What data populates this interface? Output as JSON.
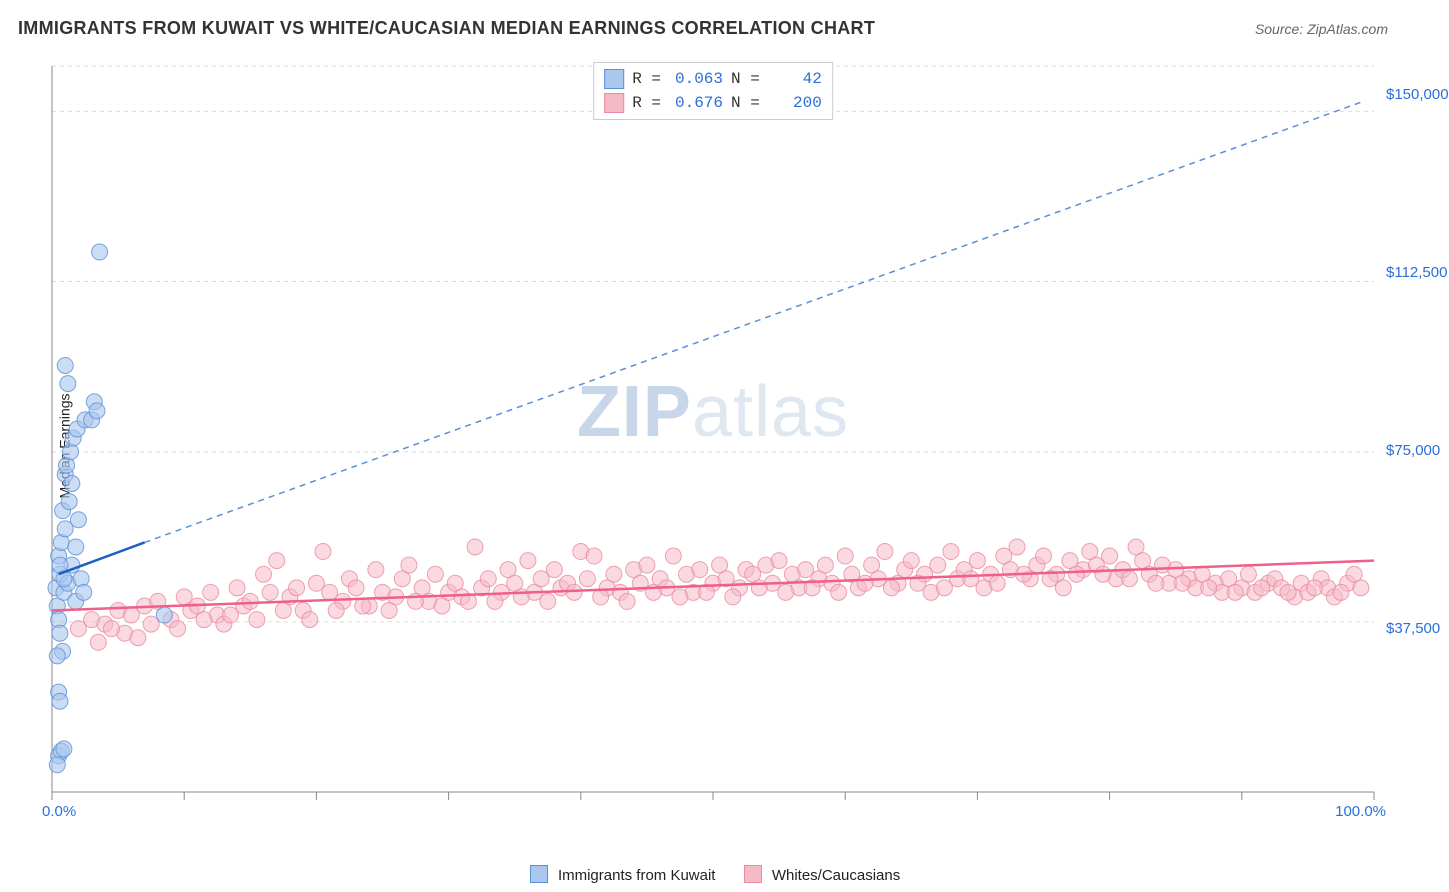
{
  "title": "IMMIGRANTS FROM KUWAIT VS WHITE/CAUCASIAN MEDIAN EARNINGS CORRELATION CHART",
  "source": "Source: ZipAtlas.com",
  "y_axis_label": "Median Earnings",
  "watermark_zip": "ZIP",
  "watermark_atlas": "atlas",
  "chart": {
    "type": "scatter",
    "plot_background": "#ffffff",
    "grid_color": "#dddddd",
    "grid_style": "dashed",
    "axis_line_color": "#888888",
    "x_axis": {
      "min": 0.0,
      "max": 100.0,
      "tick_step": 10.0,
      "labeled_ticks": [
        0.0,
        100.0
      ],
      "tick_format_left": "0.0%",
      "tick_format_right": "100.0%"
    },
    "y_axis": {
      "min": 0,
      "max": 160000,
      "gridlines": [
        37500,
        75000,
        112500,
        150000
      ],
      "tick_format": "currency",
      "label_37500": "$37,500",
      "label_75000": "$75,000",
      "label_112500": "$112,500",
      "label_150000": "$150,000"
    },
    "series": [
      {
        "name": "Immigrants from Kuwait",
        "marker_color": "#a9c7ef",
        "marker_border": "#5b8fd6",
        "marker_opacity": 0.6,
        "marker_radius": 8,
        "trend_solid_color": "#1f5fbf",
        "trend_solid_width": 2.5,
        "trend_dashed_color": "#5b8fd6",
        "trend_dash": "6 5",
        "trend_solid": {
          "x1": 0.5,
          "y1": 48000,
          "x2": 7.0,
          "y2": 55000
        },
        "trend_dashed": {
          "x1": 7.0,
          "y1": 55000,
          "x2": 99.0,
          "y2": 152000
        },
        "R": 0.063,
        "N": 42,
        "points": [
          {
            "x": 0.3,
            "y": 45000
          },
          {
            "x": 0.5,
            "y": 52000
          },
          {
            "x": 0.4,
            "y": 41000
          },
          {
            "x": 0.6,
            "y": 48000
          },
          {
            "x": 0.8,
            "y": 62000
          },
          {
            "x": 1.0,
            "y": 70000
          },
          {
            "x": 0.7,
            "y": 55000
          },
          {
            "x": 0.5,
            "y": 38000
          },
          {
            "x": 0.9,
            "y": 44000
          },
          {
            "x": 0.6,
            "y": 35000
          },
          {
            "x": 0.8,
            "y": 31000
          },
          {
            "x": 0.4,
            "y": 30000
          },
          {
            "x": 0.5,
            "y": 22000
          },
          {
            "x": 0.6,
            "y": 20000
          },
          {
            "x": 0.5,
            "y": 8000
          },
          {
            "x": 0.7,
            "y": 9000
          },
          {
            "x": 0.4,
            "y": 6000
          },
          {
            "x": 0.9,
            "y": 9500
          },
          {
            "x": 1.5,
            "y": 50000
          },
          {
            "x": 1.2,
            "y": 46000
          },
          {
            "x": 1.8,
            "y": 54000
          },
          {
            "x": 2.0,
            "y": 60000
          },
          {
            "x": 2.2,
            "y": 47000
          },
          {
            "x": 1.0,
            "y": 58000
          },
          {
            "x": 1.3,
            "y": 64000
          },
          {
            "x": 1.5,
            "y": 68000
          },
          {
            "x": 1.1,
            "y": 72000
          },
          {
            "x": 1.4,
            "y": 75000
          },
          {
            "x": 1.6,
            "y": 78000
          },
          {
            "x": 1.9,
            "y": 80000
          },
          {
            "x": 2.5,
            "y": 82000
          },
          {
            "x": 3.0,
            "y": 82000
          },
          {
            "x": 3.2,
            "y": 86000
          },
          {
            "x": 3.4,
            "y": 84000
          },
          {
            "x": 1.2,
            "y": 90000
          },
          {
            "x": 1.0,
            "y": 94000
          },
          {
            "x": 3.6,
            "y": 119000
          },
          {
            "x": 8.5,
            "y": 39000
          },
          {
            "x": 1.8,
            "y": 42000
          },
          {
            "x": 2.4,
            "y": 44000
          },
          {
            "x": 0.6,
            "y": 50000
          },
          {
            "x": 0.9,
            "y": 47000
          }
        ]
      },
      {
        "name": "Whites/Caucasians",
        "marker_color": "#f6b9c6",
        "marker_border": "#ea8ba1",
        "marker_opacity": 0.55,
        "marker_radius": 8,
        "trend_solid_color": "#ef5f8a",
        "trend_solid_width": 2.5,
        "trend_solid": {
          "x1": 0.0,
          "y1": 40000,
          "x2": 100.0,
          "y2": 51000
        },
        "R": 0.676,
        "N": 200,
        "points": [
          {
            "x": 2,
            "y": 36000
          },
          {
            "x": 3,
            "y": 38000
          },
          {
            "x": 4,
            "y": 37000
          },
          {
            "x": 5,
            "y": 40000
          },
          {
            "x": 5.5,
            "y": 35000
          },
          {
            "x": 6,
            "y": 39000
          },
          {
            "x": 7,
            "y": 41000
          },
          {
            "x": 7.5,
            "y": 37000
          },
          {
            "x": 8,
            "y": 42000
          },
          {
            "x": 9,
            "y": 38000
          },
          {
            "x": 10,
            "y": 43000
          },
          {
            "x": 10.5,
            "y": 40000
          },
          {
            "x": 11,
            "y": 41000
          },
          {
            "x": 12,
            "y": 44000
          },
          {
            "x": 12.5,
            "y": 39000
          },
          {
            "x": 13,
            "y": 37000
          },
          {
            "x": 14,
            "y": 45000
          },
          {
            "x": 14.5,
            "y": 41000
          },
          {
            "x": 15,
            "y": 42000
          },
          {
            "x": 16,
            "y": 48000
          },
          {
            "x": 16.5,
            "y": 44000
          },
          {
            "x": 17,
            "y": 51000
          },
          {
            "x": 18,
            "y": 43000
          },
          {
            "x": 18.5,
            "y": 45000
          },
          {
            "x": 19,
            "y": 40000
          },
          {
            "x": 20,
            "y": 46000
          },
          {
            "x": 20.5,
            "y": 53000
          },
          {
            "x": 21,
            "y": 44000
          },
          {
            "x": 22,
            "y": 42000
          },
          {
            "x": 22.5,
            "y": 47000
          },
          {
            "x": 23,
            "y": 45000
          },
          {
            "x": 24,
            "y": 41000
          },
          {
            "x": 24.5,
            "y": 49000
          },
          {
            "x": 25,
            "y": 44000
          },
          {
            "x": 26,
            "y": 43000
          },
          {
            "x": 26.5,
            "y": 47000
          },
          {
            "x": 27,
            "y": 50000
          },
          {
            "x": 28,
            "y": 45000
          },
          {
            "x": 28.5,
            "y": 42000
          },
          {
            "x": 29,
            "y": 48000
          },
          {
            "x": 30,
            "y": 44000
          },
          {
            "x": 30.5,
            "y": 46000
          },
          {
            "x": 31,
            "y": 43000
          },
          {
            "x": 32,
            "y": 54000
          },
          {
            "x": 32.5,
            "y": 45000
          },
          {
            "x": 33,
            "y": 47000
          },
          {
            "x": 34,
            "y": 44000
          },
          {
            "x": 34.5,
            "y": 49000
          },
          {
            "x": 35,
            "y": 46000
          },
          {
            "x": 36,
            "y": 51000
          },
          {
            "x": 36.5,
            "y": 44000
          },
          {
            "x": 37,
            "y": 47000
          },
          {
            "x": 38,
            "y": 49000
          },
          {
            "x": 38.5,
            "y": 45000
          },
          {
            "x": 39,
            "y": 46000
          },
          {
            "x": 40,
            "y": 53000
          },
          {
            "x": 40.5,
            "y": 47000
          },
          {
            "x": 41,
            "y": 52000
          },
          {
            "x": 42,
            "y": 45000
          },
          {
            "x": 42.5,
            "y": 48000
          },
          {
            "x": 43,
            "y": 44000
          },
          {
            "x": 44,
            "y": 49000
          },
          {
            "x": 44.5,
            "y": 46000
          },
          {
            "x": 45,
            "y": 50000
          },
          {
            "x": 46,
            "y": 47000
          },
          {
            "x": 46.5,
            "y": 45000
          },
          {
            "x": 47,
            "y": 52000
          },
          {
            "x": 48,
            "y": 48000
          },
          {
            "x": 48.5,
            "y": 44000
          },
          {
            "x": 49,
            "y": 49000
          },
          {
            "x": 50,
            "y": 46000
          },
          {
            "x": 50.5,
            "y": 50000
          },
          {
            "x": 51,
            "y": 47000
          },
          {
            "x": 52,
            "y": 45000
          },
          {
            "x": 52.5,
            "y": 49000
          },
          {
            "x": 53,
            "y": 48000
          },
          {
            "x": 54,
            "y": 50000
          },
          {
            "x": 54.5,
            "y": 46000
          },
          {
            "x": 55,
            "y": 51000
          },
          {
            "x": 56,
            "y": 48000
          },
          {
            "x": 56.5,
            "y": 45000
          },
          {
            "x": 57,
            "y": 49000
          },
          {
            "x": 58,
            "y": 47000
          },
          {
            "x": 58.5,
            "y": 50000
          },
          {
            "x": 59,
            "y": 46000
          },
          {
            "x": 60,
            "y": 52000
          },
          {
            "x": 60.5,
            "y": 48000
          },
          {
            "x": 61,
            "y": 45000
          },
          {
            "x": 62,
            "y": 50000
          },
          {
            "x": 62.5,
            "y": 47000
          },
          {
            "x": 63,
            "y": 53000
          },
          {
            "x": 64,
            "y": 46000
          },
          {
            "x": 64.5,
            "y": 49000
          },
          {
            "x": 65,
            "y": 51000
          },
          {
            "x": 66,
            "y": 48000
          },
          {
            "x": 66.5,
            "y": 44000
          },
          {
            "x": 67,
            "y": 50000
          },
          {
            "x": 68,
            "y": 53000
          },
          {
            "x": 68.5,
            "y": 47000
          },
          {
            "x": 69,
            "y": 49000
          },
          {
            "x": 70,
            "y": 51000
          },
          {
            "x": 70.5,
            "y": 45000
          },
          {
            "x": 71,
            "y": 48000
          },
          {
            "x": 72,
            "y": 52000
          },
          {
            "x": 72.5,
            "y": 49000
          },
          {
            "x": 73,
            "y": 54000
          },
          {
            "x": 74,
            "y": 47000
          },
          {
            "x": 74.5,
            "y": 50000
          },
          {
            "x": 75,
            "y": 52000
          },
          {
            "x": 76,
            "y": 48000
          },
          {
            "x": 76.5,
            "y": 45000
          },
          {
            "x": 77,
            "y": 51000
          },
          {
            "x": 78,
            "y": 49000
          },
          {
            "x": 78.5,
            "y": 53000
          },
          {
            "x": 79,
            "y": 50000
          },
          {
            "x": 80,
            "y": 52000
          },
          {
            "x": 80.5,
            "y": 47000
          },
          {
            "x": 81,
            "y": 49000
          },
          {
            "x": 82,
            "y": 54000
          },
          {
            "x": 82.5,
            "y": 51000
          },
          {
            "x": 83,
            "y": 48000
          },
          {
            "x": 84,
            "y": 50000
          },
          {
            "x": 84.5,
            "y": 46000
          },
          {
            "x": 85,
            "y": 49000
          },
          {
            "x": 86,
            "y": 47000
          },
          {
            "x": 86.5,
            "y": 45000
          },
          {
            "x": 87,
            "y": 48000
          },
          {
            "x": 88,
            "y": 46000
          },
          {
            "x": 88.5,
            "y": 44000
          },
          {
            "x": 89,
            "y": 47000
          },
          {
            "x": 90,
            "y": 45000
          },
          {
            "x": 90.5,
            "y": 48000
          },
          {
            "x": 91,
            "y": 44000
          },
          {
            "x": 92,
            "y": 46000
          },
          {
            "x": 92.5,
            "y": 47000
          },
          {
            "x": 93,
            "y": 45000
          },
          {
            "x": 94,
            "y": 43000
          },
          {
            "x": 94.5,
            "y": 46000
          },
          {
            "x": 95,
            "y": 44000
          },
          {
            "x": 96,
            "y": 47000
          },
          {
            "x": 96.5,
            "y": 45000
          },
          {
            "x": 97,
            "y": 43000
          },
          {
            "x": 98,
            "y": 46000
          },
          {
            "x": 98.5,
            "y": 48000
          },
          {
            "x": 99,
            "y": 45000
          },
          {
            "x": 3.5,
            "y": 33000
          },
          {
            "x": 4.5,
            "y": 36000
          },
          {
            "x": 6.5,
            "y": 34000
          },
          {
            "x": 9.5,
            "y": 36000
          },
          {
            "x": 11.5,
            "y": 38000
          },
          {
            "x": 13.5,
            "y": 39000
          },
          {
            "x": 15.5,
            "y": 38000
          },
          {
            "x": 17.5,
            "y": 40000
          },
          {
            "x": 19.5,
            "y": 38000
          },
          {
            "x": 21.5,
            "y": 40000
          },
          {
            "x": 23.5,
            "y": 41000
          },
          {
            "x": 25.5,
            "y": 40000
          },
          {
            "x": 27.5,
            "y": 42000
          },
          {
            "x": 29.5,
            "y": 41000
          },
          {
            "x": 31.5,
            "y": 42000
          },
          {
            "x": 33.5,
            "y": 42000
          },
          {
            "x": 35.5,
            "y": 43000
          },
          {
            "x": 37.5,
            "y": 42000
          },
          {
            "x": 39.5,
            "y": 44000
          },
          {
            "x": 41.5,
            "y": 43000
          },
          {
            "x": 43.5,
            "y": 42000
          },
          {
            "x": 45.5,
            "y": 44000
          },
          {
            "x": 47.5,
            "y": 43000
          },
          {
            "x": 49.5,
            "y": 44000
          },
          {
            "x": 51.5,
            "y": 43000
          },
          {
            "x": 53.5,
            "y": 45000
          },
          {
            "x": 55.5,
            "y": 44000
          },
          {
            "x": 57.5,
            "y": 45000
          },
          {
            "x": 59.5,
            "y": 44000
          },
          {
            "x": 61.5,
            "y": 46000
          },
          {
            "x": 63.5,
            "y": 45000
          },
          {
            "x": 65.5,
            "y": 46000
          },
          {
            "x": 67.5,
            "y": 45000
          },
          {
            "x": 69.5,
            "y": 47000
          },
          {
            "x": 71.5,
            "y": 46000
          },
          {
            "x": 73.5,
            "y": 48000
          },
          {
            "x": 75.5,
            "y": 47000
          },
          {
            "x": 77.5,
            "y": 48000
          },
          {
            "x": 79.5,
            "y": 48000
          },
          {
            "x": 81.5,
            "y": 47000
          },
          {
            "x": 83.5,
            "y": 46000
          },
          {
            "x": 85.5,
            "y": 46000
          },
          {
            "x": 87.5,
            "y": 45000
          },
          {
            "x": 89.5,
            "y": 44000
          },
          {
            "x": 91.5,
            "y": 45000
          },
          {
            "x": 93.5,
            "y": 44000
          },
          {
            "x": 95.5,
            "y": 45000
          },
          {
            "x": 97.5,
            "y": 44000
          }
        ]
      }
    ],
    "legend_box": {
      "R_label": "R =",
      "N_label": "N ="
    },
    "bottom_legend": {
      "item1": "Immigrants from Kuwait",
      "item2": "Whites/Caucasians"
    }
  }
}
